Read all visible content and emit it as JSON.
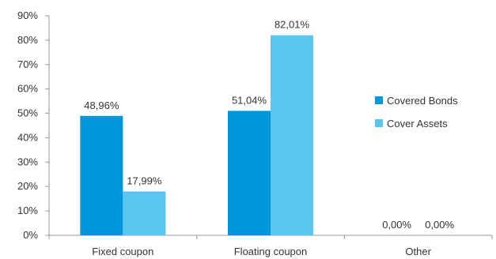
{
  "chart_data": {
    "type": "bar",
    "categories": [
      "Fixed coupon",
      "Floating coupon",
      "Other"
    ],
    "series": [
      {
        "name": "Covered Bonds",
        "values": [
          48.96,
          51.04,
          0.0
        ],
        "labels": [
          "48,96%",
          "51,04%",
          "0,00%"
        ],
        "color": "#0096db"
      },
      {
        "name": "Cover Assets",
        "values": [
          17.99,
          82.01,
          0.0
        ],
        "labels": [
          "17,99%",
          "82,01%",
          "0,00%"
        ],
        "color": "#5bc5f2"
      }
    ],
    "ylim": [
      0,
      90
    ],
    "y_ticks": [
      0,
      10,
      20,
      30,
      40,
      50,
      60,
      70,
      80,
      90
    ],
    "y_tick_labels": [
      "0%",
      "10%",
      "20%",
      "30%",
      "40%",
      "50%",
      "60%",
      "70%",
      "80%",
      "90%"
    ],
    "grid": false,
    "legend_position": "right",
    "axis_color": "#999999"
  }
}
